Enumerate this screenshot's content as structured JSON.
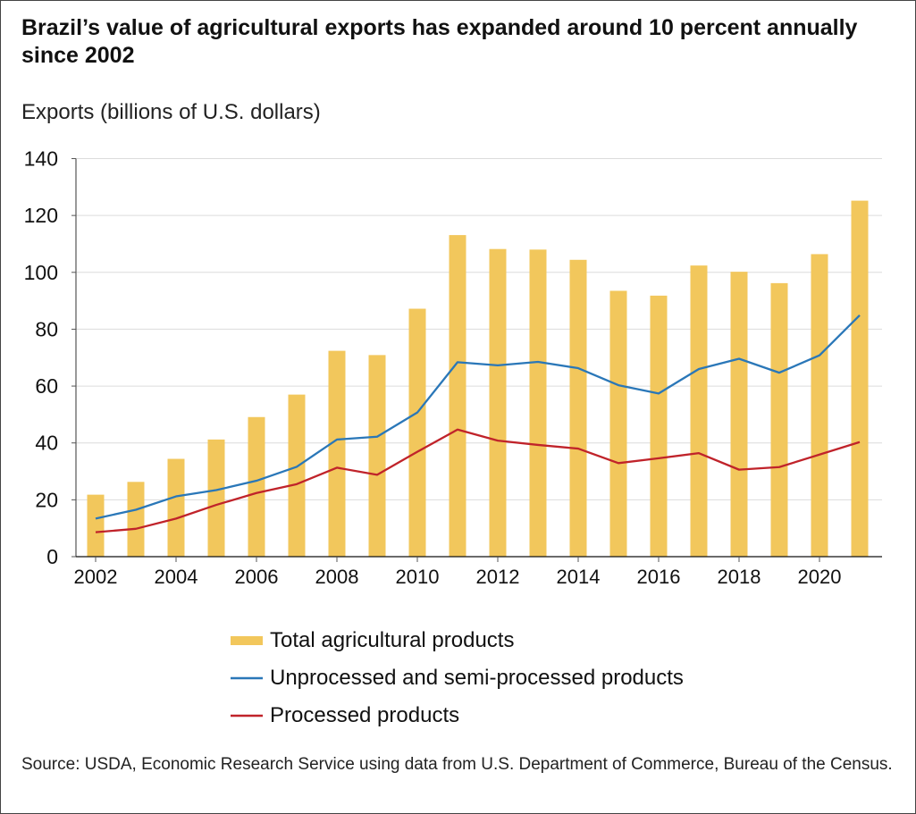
{
  "chart_data": {
    "type": "bar+line",
    "title": "Brazil’s value of agricultural exports has expanded around 10 percent annually since 2002",
    "ylabel": "Exports (billions of U.S. dollars)",
    "xlabel": "",
    "ylim": [
      0,
      140
    ],
    "yticks": [
      "0",
      "20",
      "40",
      "60",
      "80",
      "100",
      "120",
      "140"
    ],
    "xticks": [
      "2002",
      "2004",
      "2006",
      "2008",
      "2010",
      "2012",
      "2014",
      "2016",
      "2018",
      "2020"
    ],
    "grid": "horizontal",
    "legend_position": "bottom",
    "x": [
      2002,
      2003,
      2004,
      2005,
      2006,
      2007,
      2008,
      2009,
      2010,
      2011,
      2012,
      2013,
      2014,
      2015,
      2016,
      2017,
      2018,
      2019,
      2020,
      2021
    ],
    "series": [
      {
        "name": "Total agricultural  products",
        "kind": "bar",
        "color": "#f2c75c",
        "values": [
          21.8,
          26.3,
          34.4,
          41.2,
          49.1,
          57.0,
          72.4,
          70.9,
          87.2,
          113.1,
          108.2,
          108.0,
          104.4,
          93.5,
          91.8,
          102.4,
          100.2,
          96.2,
          106.4,
          125.2
        ]
      },
      {
        "name": "Unprocessed and semi-processed products",
        "kind": "line",
        "color": "#2a77b8",
        "values": [
          13.4,
          16.5,
          21.2,
          23.4,
          26.7,
          31.6,
          41.2,
          42.2,
          50.7,
          68.4,
          67.3,
          68.5,
          66.3,
          60.3,
          57.4,
          66.0,
          69.6,
          64.7,
          70.8,
          84.9
        ]
      },
      {
        "name": "Processed products",
        "kind": "line",
        "color": "#c0232a",
        "values": [
          8.6,
          9.8,
          13.4,
          18.2,
          22.4,
          25.5,
          31.3,
          28.8,
          36.9,
          44.7,
          40.8,
          39.3,
          38.0,
          32.9,
          34.6,
          36.4,
          30.6,
          31.5,
          35.9,
          40.3
        ]
      }
    ]
  },
  "source": "Source: USDA, Economic Research Service using data from U.S. Department of Commerce, Bureau of the Census."
}
